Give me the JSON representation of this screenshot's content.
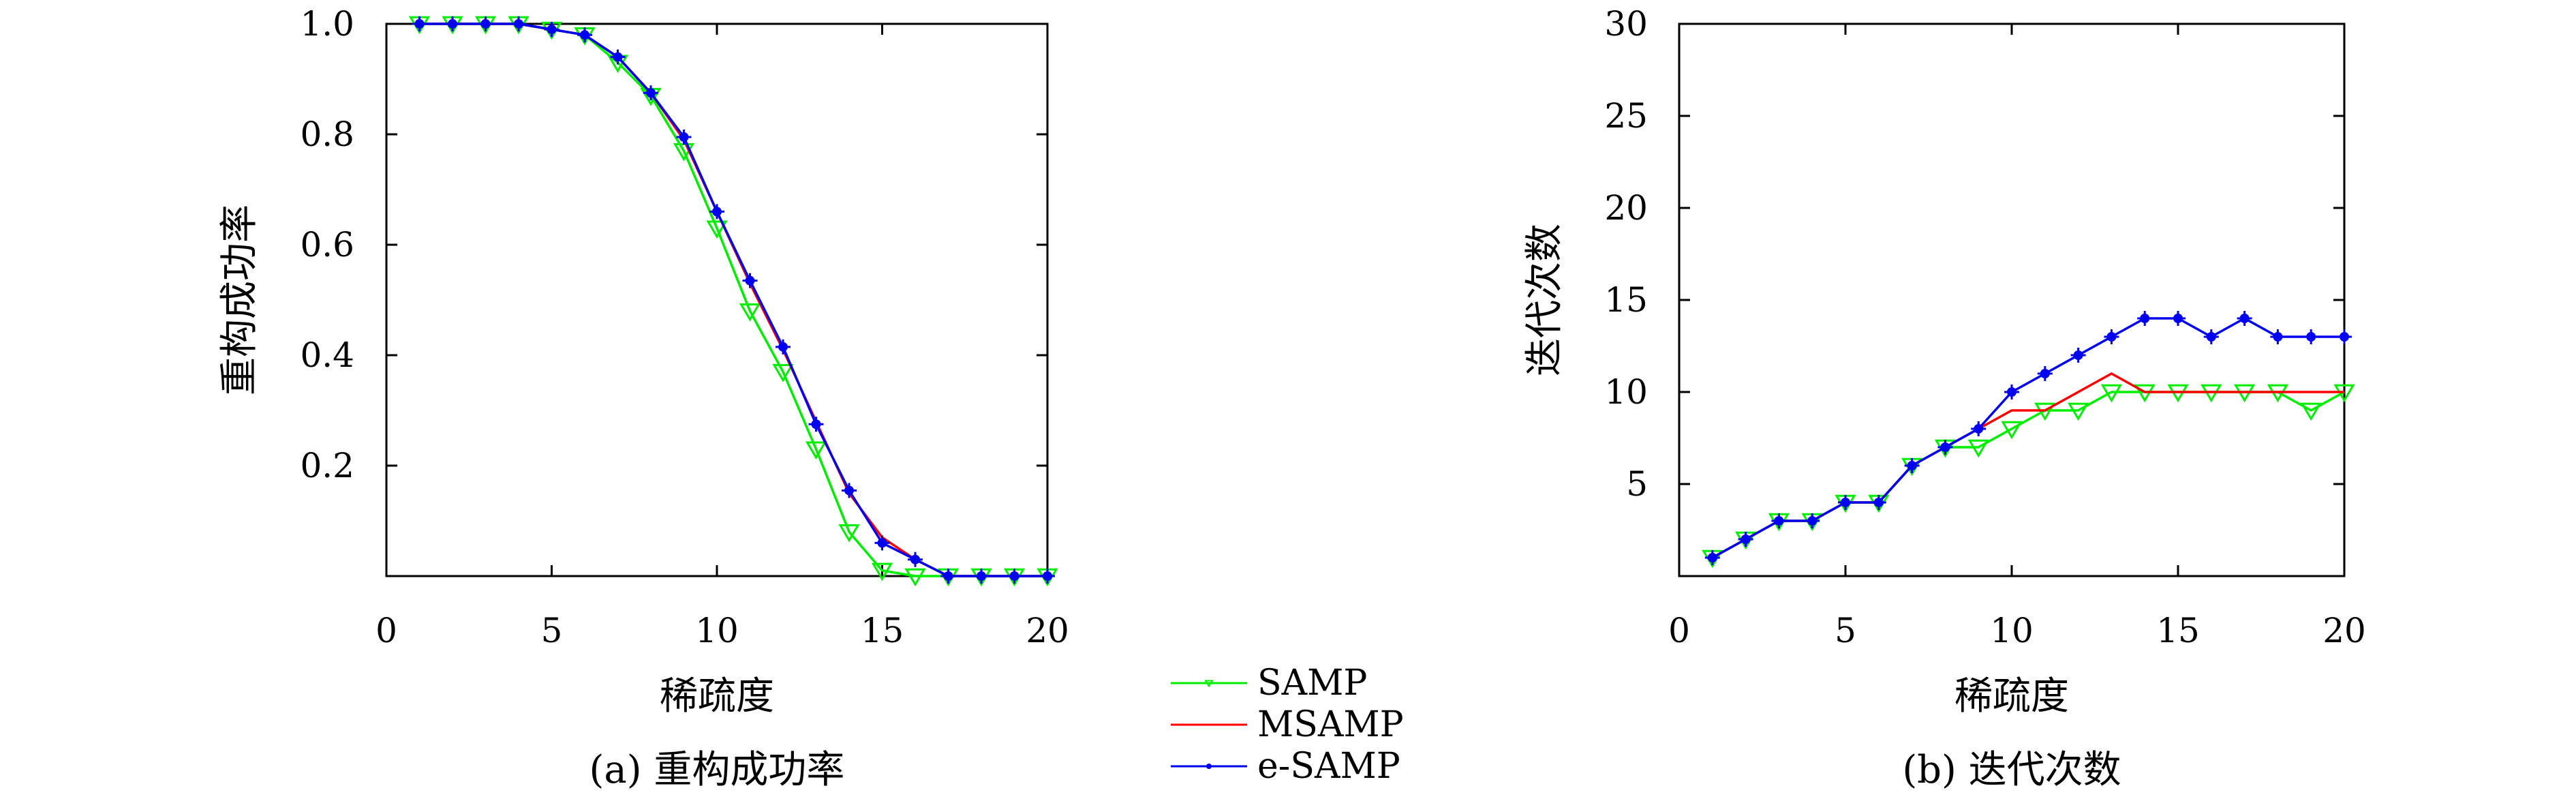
{
  "colors": {
    "SAMP": "#00ee00",
    "MSAMP": "#ff0000",
    "e-SAMP": "#0000ee"
  },
  "legend": {
    "placement": "bottom-center",
    "entries": [
      {
        "label": "SAMP",
        "color": "#00ee00",
        "marker": "triangle-down"
      },
      {
        "label": "MSAMP",
        "color": "#ff0000",
        "marker": "none"
      },
      {
        "label": "e-SAMP",
        "color": "#0000ee",
        "marker": "star"
      }
    ]
  },
  "chart_data": [
    {
      "type": "line",
      "caption": "(a) 重构成功率",
      "xlabel": "稀疏度",
      "ylabel": "重构成功率",
      "xlim": [
        0,
        20
      ],
      "ylim": [
        0,
        1.0
      ],
      "xticks": [
        "0",
        "5",
        "10",
        "15",
        "20"
      ],
      "yticks": [
        "0.2",
        "0.4",
        "0.6",
        "0.8",
        "1.0"
      ],
      "grid": false,
      "x": [
        1,
        2,
        3,
        4,
        5,
        6,
        7,
        8,
        9,
        10,
        11,
        12,
        13,
        14,
        15,
        16,
        17,
        18,
        19,
        20
      ],
      "series": [
        {
          "name": "SAMP",
          "color": "#00ee00",
          "marker": "triangle-down",
          "values": [
            1.0,
            1.0,
            1.0,
            1.0,
            0.99,
            0.98,
            0.93,
            0.87,
            0.77,
            0.63,
            0.48,
            0.37,
            0.23,
            0.08,
            0.01,
            0,
            0,
            0,
            0,
            0
          ]
        },
        {
          "name": "MSAMP",
          "color": "#ff0000",
          "marker": "none",
          "values": [
            1.0,
            1.0,
            1.0,
            1.0,
            0.99,
            0.98,
            0.94,
            0.875,
            0.79,
            0.66,
            0.53,
            0.41,
            0.28,
            0.15,
            0.07,
            0.03,
            0,
            0,
            0,
            0
          ]
        },
        {
          "name": "e-SAMP",
          "color": "#0000ee",
          "marker": "star",
          "values": [
            1.0,
            1.0,
            1.0,
            1.0,
            0.99,
            0.98,
            0.94,
            0.875,
            0.795,
            0.66,
            0.535,
            0.415,
            0.275,
            0.155,
            0.06,
            0.03,
            0,
            0,
            0,
            0
          ]
        }
      ]
    },
    {
      "type": "line",
      "caption": "(b) 迭代次数",
      "xlabel": "稀疏度",
      "ylabel": "迭代次数",
      "xlim": [
        0,
        20
      ],
      "ylim": [
        0,
        30
      ],
      "xticks": [
        "0",
        "5",
        "10",
        "15",
        "20"
      ],
      "yticks": [
        "5",
        "10",
        "15",
        "20",
        "25",
        "30"
      ],
      "grid": false,
      "x": [
        1,
        2,
        3,
        4,
        5,
        6,
        7,
        8,
        9,
        10,
        11,
        12,
        13,
        14,
        15,
        16,
        17,
        18,
        19,
        20
      ],
      "series": [
        {
          "name": "SAMP",
          "color": "#00ee00",
          "marker": "triangle-down",
          "values": [
            1,
            2,
            3,
            3,
            4,
            4,
            6,
            7,
            7,
            8,
            9,
            9,
            10,
            10,
            10,
            10,
            10,
            10,
            9,
            10
          ]
        },
        {
          "name": "MSAMP",
          "color": "#ff0000",
          "marker": "none",
          "values": [
            1,
            2,
            3,
            3,
            4,
            4,
            6,
            7,
            8,
            9,
            9,
            10,
            11,
            10,
            10,
            10,
            10,
            10,
            10,
            10
          ]
        },
        {
          "name": "e-SAMP",
          "color": "#0000ee",
          "marker": "star",
          "values": [
            1,
            2,
            3,
            3,
            4,
            4,
            6,
            7,
            8,
            10,
            11,
            12,
            13,
            14,
            14,
            13,
            14,
            13,
            13,
            13
          ]
        }
      ]
    }
  ]
}
